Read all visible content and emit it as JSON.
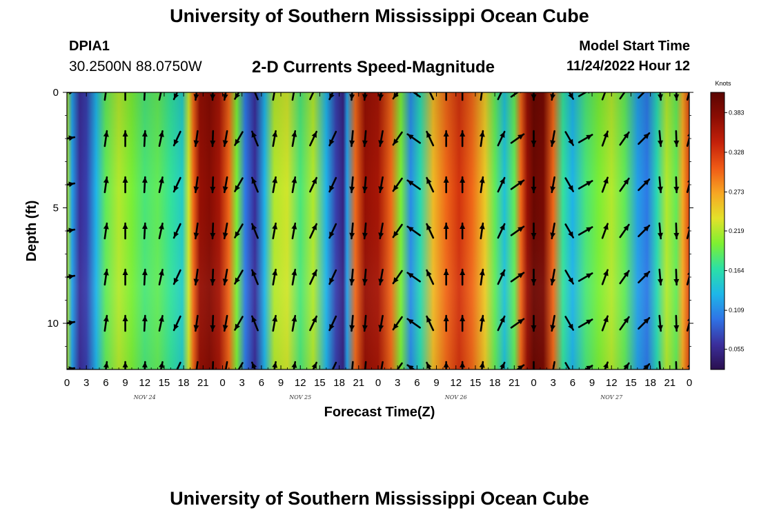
{
  "header": {
    "title": "University of Southern Mississippi Ocean Cube",
    "station_id": "DPIA1",
    "station_coords": "30.2500N  88.0750W",
    "plot_title": "2-D Currents Speed-Magnitude",
    "model_label": "Model Start Time",
    "model_value": "11/24/2022 Hour 12"
  },
  "footer": {
    "title": "University of Southern Mississippi Ocean Cube"
  },
  "chart_data": {
    "type": "heatmap",
    "title": "2-D Currents Speed-Magnitude",
    "xlabel": "Forecast Time(Z)",
    "ylabel": "Depth (ft)",
    "x_unit": "hours since forecast start",
    "xlim": [
      0,
      96
    ],
    "ylim": [
      0,
      12
    ],
    "y_inverted": true,
    "x_ticks": [
      {
        "h": 0,
        "label": "0"
      },
      {
        "h": 3,
        "label": "3"
      },
      {
        "h": 6,
        "label": "6"
      },
      {
        "h": 9,
        "label": "9"
      },
      {
        "h": 12,
        "label": "12"
      },
      {
        "h": 15,
        "label": "15"
      },
      {
        "h": 18,
        "label": "18"
      },
      {
        "h": 21,
        "label": "21"
      },
      {
        "h": 24,
        "label": "0"
      },
      {
        "h": 27,
        "label": "3"
      },
      {
        "h": 30,
        "label": "6"
      },
      {
        "h": 33,
        "label": "9"
      },
      {
        "h": 36,
        "label": "12"
      },
      {
        "h": 39,
        "label": "15"
      },
      {
        "h": 42,
        "label": "18"
      },
      {
        "h": 45,
        "label": "21"
      },
      {
        "h": 48,
        "label": "0"
      },
      {
        "h": 51,
        "label": "3"
      },
      {
        "h": 54,
        "label": "6"
      },
      {
        "h": 57,
        "label": "9"
      },
      {
        "h": 60,
        "label": "12"
      },
      {
        "h": 63,
        "label": "15"
      },
      {
        "h": 66,
        "label": "18"
      },
      {
        "h": 69,
        "label": "21"
      },
      {
        "h": 72,
        "label": "0"
      },
      {
        "h": 75,
        "label": "3"
      },
      {
        "h": 78,
        "label": "6"
      },
      {
        "h": 81,
        "label": "9"
      },
      {
        "h": 84,
        "label": "12"
      },
      {
        "h": 87,
        "label": "15"
      },
      {
        "h": 90,
        "label": "18"
      },
      {
        "h": 93,
        "label": "21"
      },
      {
        "h": 96,
        "label": "0"
      }
    ],
    "day_labels": [
      {
        "h": 12,
        "label": "NOV 24"
      },
      {
        "h": 36,
        "label": "NOV 25"
      },
      {
        "h": 60,
        "label": "NOV 26"
      },
      {
        "h": 84,
        "label": "NOV 27"
      }
    ],
    "y_ticks": [
      {
        "v": 0,
        "label": "0"
      },
      {
        "v": 5,
        "label": "5"
      },
      {
        "v": 10,
        "label": "10"
      }
    ],
    "colorbar": {
      "title": "Knots",
      "range": [
        0.027,
        0.411
      ],
      "ticks": [
        "0.055",
        "0.109",
        "0.164",
        "0.219",
        "0.273",
        "0.328",
        "0.383"
      ],
      "tick_values": [
        0.055,
        0.109,
        0.164,
        0.219,
        0.273,
        0.328,
        0.383
      ],
      "colors": [
        "#2a0f4e",
        "#3b2f9c",
        "#2f73e6",
        "#1eb7e8",
        "#2be0a6",
        "#7ef031",
        "#e3e22a",
        "#f7a623",
        "#ef5a16",
        "#c4210a",
        "#8c0d03",
        "#5a0502"
      ]
    },
    "speed_profile_knots": [
      {
        "h": 0,
        "v": 0.22
      },
      {
        "h": 0.8,
        "v": 0.12
      },
      {
        "h": 2,
        "v": 0.06
      },
      {
        "h": 3,
        "v": 0.07
      },
      {
        "h": 4.5,
        "v": 0.13
      },
      {
        "h": 6,
        "v": 0.19
      },
      {
        "h": 8,
        "v": 0.22
      },
      {
        "h": 10,
        "v": 0.2
      },
      {
        "h": 12,
        "v": 0.18
      },
      {
        "h": 14,
        "v": 0.19
      },
      {
        "h": 16,
        "v": 0.17
      },
      {
        "h": 17.8,
        "v": 0.15
      },
      {
        "h": 18.8,
        "v": 0.23
      },
      {
        "h": 19.5,
        "v": 0.3
      },
      {
        "h": 20.5,
        "v": 0.37
      },
      {
        "h": 22,
        "v": 0.38
      },
      {
        "h": 23.5,
        "v": 0.36
      },
      {
        "h": 25,
        "v": 0.3
      },
      {
        "h": 26.2,
        "v": 0.2
      },
      {
        "h": 27.5,
        "v": 0.1
      },
      {
        "h": 29,
        "v": 0.06
      },
      {
        "h": 30.5,
        "v": 0.13
      },
      {
        "h": 32,
        "v": 0.22
      },
      {
        "h": 34,
        "v": 0.23
      },
      {
        "h": 36,
        "v": 0.18
      },
      {
        "h": 38,
        "v": 0.22
      },
      {
        "h": 40,
        "v": 0.13
      },
      {
        "h": 41.5,
        "v": 0.07
      },
      {
        "h": 42.6,
        "v": 0.05
      },
      {
        "h": 43.2,
        "v": 0.12
      },
      {
        "h": 44.5,
        "v": 0.3
      },
      {
        "h": 46,
        "v": 0.37
      },
      {
        "h": 48,
        "v": 0.36
      },
      {
        "h": 50,
        "v": 0.3
      },
      {
        "h": 51.5,
        "v": 0.2
      },
      {
        "h": 53,
        "v": 0.11
      },
      {
        "h": 54.5,
        "v": 0.16
      },
      {
        "h": 56.5,
        "v": 0.26
      },
      {
        "h": 58.5,
        "v": 0.3
      },
      {
        "h": 60.5,
        "v": 0.33
      },
      {
        "h": 62.5,
        "v": 0.3
      },
      {
        "h": 64.5,
        "v": 0.25
      },
      {
        "h": 66,
        "v": 0.19
      },
      {
        "h": 67.5,
        "v": 0.14
      },
      {
        "h": 69,
        "v": 0.19
      },
      {
        "h": 70,
        "v": 0.3
      },
      {
        "h": 71,
        "v": 0.37
      },
      {
        "h": 72,
        "v": 0.4
      },
      {
        "h": 73.5,
        "v": 0.39
      },
      {
        "h": 75,
        "v": 0.3
      },
      {
        "h": 76.5,
        "v": 0.17
      },
      {
        "h": 78,
        "v": 0.13
      },
      {
        "h": 80,
        "v": 0.18
      },
      {
        "h": 82,
        "v": 0.2
      },
      {
        "h": 84,
        "v": 0.22
      },
      {
        "h": 86,
        "v": 0.19
      },
      {
        "h": 88,
        "v": 0.12
      },
      {
        "h": 89.5,
        "v": 0.1
      },
      {
        "h": 91,
        "v": 0.16
      },
      {
        "h": 92.5,
        "v": 0.22
      },
      {
        "h": 94,
        "v": 0.19
      },
      {
        "h": 95,
        "v": 0.27
      },
      {
        "h": 96,
        "v": 0.32
      }
    ],
    "vector_depths_ft": [
      0,
      2,
      4,
      6,
      8,
      10,
      12
    ],
    "vector_direction_deg": [
      {
        "h": 0,
        "deg": 80
      },
      {
        "h": 6,
        "deg": 8
      },
      {
        "h": 9,
        "deg": 0
      },
      {
        "h": 12,
        "deg": 3
      },
      {
        "h": 14.5,
        "deg": 12
      },
      {
        "h": 17,
        "deg": 205
      },
      {
        "h": 20,
        "deg": 188
      },
      {
        "h": 22.5,
        "deg": 182
      },
      {
        "h": 24.5,
        "deg": 190
      },
      {
        "h": 26.5,
        "deg": 210
      },
      {
        "h": 29,
        "deg": 338
      },
      {
        "h": 32,
        "deg": 10
      },
      {
        "h": 35,
        "deg": 10
      },
      {
        "h": 38,
        "deg": 25
      },
      {
        "h": 41,
        "deg": 205
      },
      {
        "h": 44,
        "deg": 185
      },
      {
        "h": 46,
        "deg": 185
      },
      {
        "h": 48.5,
        "deg": 190
      },
      {
        "h": 51,
        "deg": 215
      },
      {
        "h": 53.5,
        "deg": 305
      },
      {
        "h": 56,
        "deg": 335
      },
      {
        "h": 58.5,
        "deg": 0
      },
      {
        "h": 61,
        "deg": 0
      },
      {
        "h": 64,
        "deg": 8
      },
      {
        "h": 67,
        "deg": 25
      },
      {
        "h": 69.5,
        "deg": 55
      },
      {
        "h": 72,
        "deg": 180
      },
      {
        "h": 75,
        "deg": 190
      },
      {
        "h": 77.5,
        "deg": 150
      },
      {
        "h": 80,
        "deg": 60
      },
      {
        "h": 83,
        "deg": 20
      },
      {
        "h": 86,
        "deg": 35
      },
      {
        "h": 89,
        "deg": 45
      },
      {
        "h": 91.5,
        "deg": 175
      },
      {
        "h": 94,
        "deg": 178
      },
      {
        "h": 96,
        "deg": 15
      }
    ],
    "vector_times_h": [
      0,
      6,
      9,
      12,
      14.5,
      17,
      20,
      22.5,
      24.5,
      26.5,
      29,
      32,
      35,
      38,
      41,
      44,
      46,
      48.5,
      51,
      53.5,
      56,
      58.5,
      61,
      64,
      67,
      69.5,
      72,
      75,
      77.5,
      80,
      83,
      86,
      89,
      91.5,
      94,
      96
    ]
  }
}
